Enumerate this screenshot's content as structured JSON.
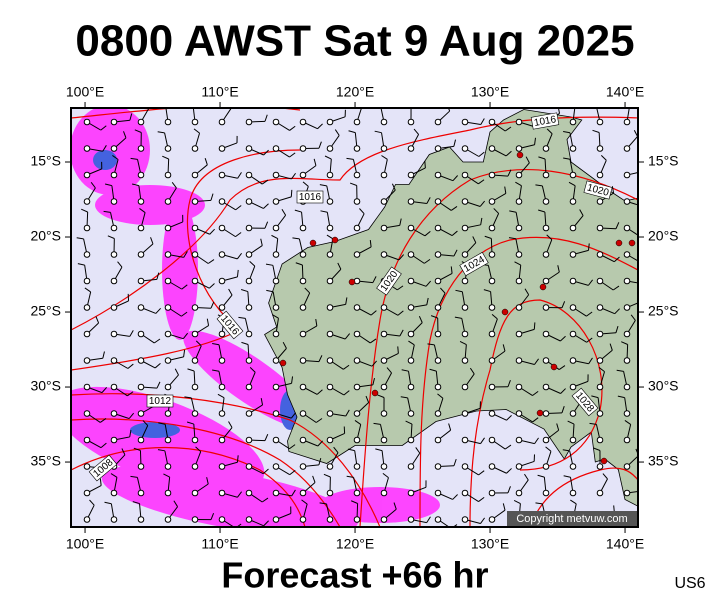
{
  "title": "0800 AWST Sat 9 Aug 2025",
  "footer": "Forecast +66 hr",
  "code": "US6",
  "copyright": "Copyright metvuw.com",
  "map": {
    "xlim": [
      98.96,
      140.96
    ],
    "ylim": [
      -39.33,
      -11.4
    ],
    "xticks": [
      {
        "value": 100,
        "label": "100°E"
      },
      {
        "value": 110,
        "label": "110°E"
      },
      {
        "value": 120,
        "label": "120°E"
      },
      {
        "value": 130,
        "label": "130°E"
      },
      {
        "value": 140,
        "label": "140°E"
      }
    ],
    "yticks": [
      {
        "value": -15,
        "label": "15°S"
      },
      {
        "value": -20,
        "label": "20°S"
      },
      {
        "value": -25,
        "label": "25°S"
      },
      {
        "value": -30,
        "label": "30°S"
      },
      {
        "value": -35,
        "label": "35°S"
      }
    ],
    "isobar_labels": [
      1016,
      1016,
      1016,
      1020,
      1020,
      1024,
      1028,
      1012,
      1008
    ]
  }
}
